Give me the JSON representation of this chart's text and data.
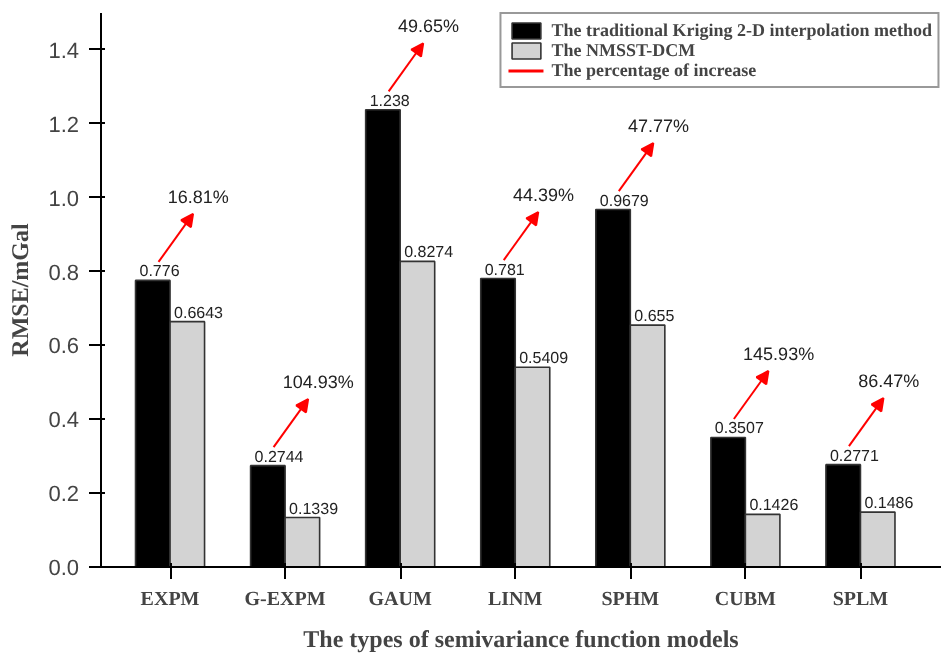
{
  "chart_data": {
    "type": "bar",
    "xlabel": "The types of semivariance function models",
    "ylabel": "RMSE/mGal",
    "categories": [
      "EXPM",
      "G-EXPM",
      "GAUM",
      "LINM",
      "SPHM",
      "CUBM",
      "SPLM"
    ],
    "series": [
      {
        "name": "The traditional Kriging 2-D interpolation method",
        "color": "#000000",
        "values": [
          0.776,
          0.2744,
          1.238,
          0.781,
          0.9679,
          0.3507,
          0.2771
        ]
      },
      {
        "name": "The NMSST-DCM",
        "color": "#d3d3d3",
        "values": [
          0.6643,
          0.1339,
          0.8274,
          0.5409,
          0.655,
          0.1426,
          0.1486
        ]
      }
    ],
    "data_labels": true,
    "ylim": [
      0,
      1.5
    ],
    "yticks": [
      {
        "value": 0,
        "label": "0.0"
      },
      0.2,
      0.4,
      0.6,
      0.8,
      {
        "value": 1,
        "label": "1.0"
      },
      1.2,
      1.4
    ],
    "annotations": [
      "The percentage of increase",
      "16.81%",
      "104.93%",
      "49.65%",
      "44.39%",
      "47.77%",
      "145.93%",
      "86.47%"
    ],
    "legend": "top right",
    "grid": false
  }
}
